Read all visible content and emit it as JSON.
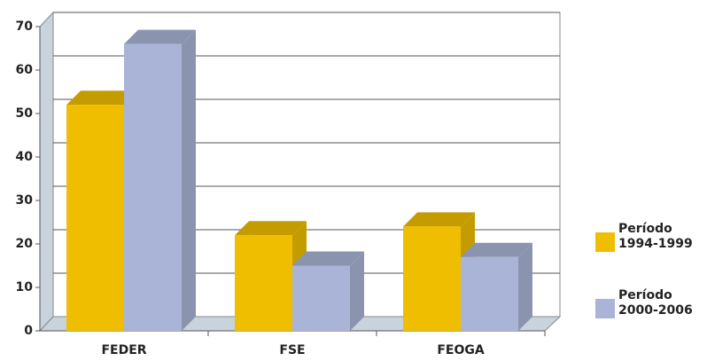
{
  "chart_data": {
    "type": "bar3d",
    "categories": [
      "FEDER",
      "FSE",
      "FEOGA"
    ],
    "series": [
      {
        "name": "Período 1994-1999",
        "color": "#f0be00",
        "values": [
          52,
          22,
          24
        ]
      },
      {
        "name": "Período 2000-2006",
        "color": "#aab4d6",
        "values": [
          66,
          15,
          17
        ]
      }
    ],
    "ylim": [
      0,
      70
    ],
    "yticks": [
      0,
      10,
      20,
      30,
      40,
      50,
      60,
      70
    ],
    "grid": true
  }
}
